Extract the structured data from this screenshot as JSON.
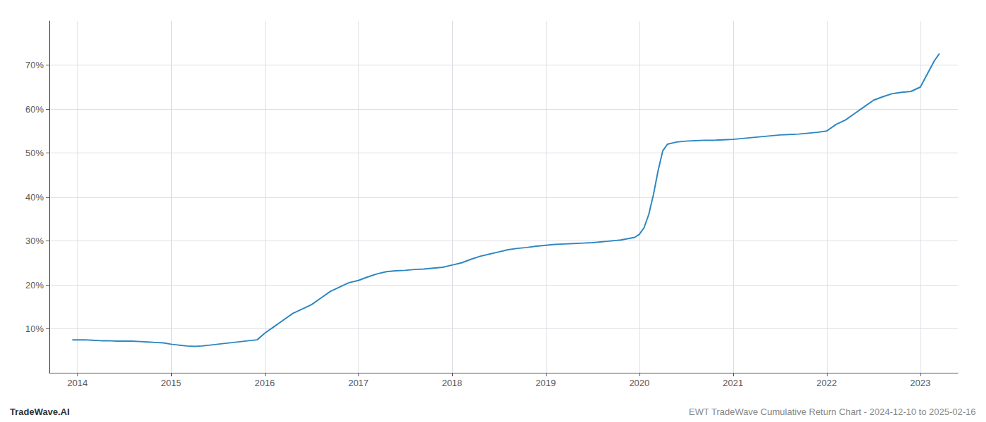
{
  "chart_data": {
    "type": "line",
    "annotations": [
      "TradeWave.AI",
      "EWT TradeWave Cumulative Return Chart - 2024-12-10 to 2025-02-16"
    ],
    "color": "#2e86c1",
    "grid": true,
    "x": [
      2013.95,
      2014.0,
      2014.08,
      2014.16,
      2014.25,
      2014.33,
      2014.42,
      2014.5,
      2014.58,
      2014.67,
      2014.75,
      2014.83,
      2014.92,
      2015.0,
      2015.08,
      2015.17,
      2015.25,
      2015.33,
      2015.42,
      2015.5,
      2015.58,
      2015.67,
      2015.75,
      2015.83,
      2015.92,
      2016.0,
      2016.1,
      2016.2,
      2016.3,
      2016.4,
      2016.5,
      2016.6,
      2016.7,
      2016.8,
      2016.9,
      2017.0,
      2017.1,
      2017.2,
      2017.3,
      2017.4,
      2017.5,
      2017.6,
      2017.7,
      2017.8,
      2017.9,
      2018.0,
      2018.1,
      2018.2,
      2018.3,
      2018.4,
      2018.5,
      2018.6,
      2018.7,
      2018.8,
      2018.9,
      2019.0,
      2019.1,
      2019.2,
      2019.3,
      2019.4,
      2019.5,
      2019.55,
      2019.6,
      2019.65,
      2019.7,
      2019.75,
      2019.8,
      2019.85,
      2019.9,
      2019.95,
      2020.0,
      2020.05,
      2020.1,
      2020.15,
      2020.2,
      2020.25,
      2020.3,
      2020.4,
      2020.5,
      2020.6,
      2020.7,
      2020.8,
      2020.9,
      2021.0,
      2021.1,
      2021.2,
      2021.3,
      2021.4,
      2021.5,
      2021.6,
      2021.7,
      2021.8,
      2021.9,
      2022.0,
      2022.1,
      2022.2,
      2022.3,
      2022.4,
      2022.5,
      2022.6,
      2022.7,
      2022.8,
      2022.9,
      2023.0,
      2023.05,
      2023.1,
      2023.15,
      2023.2
    ],
    "values": [
      7.5,
      7.5,
      7.5,
      7.4,
      7.3,
      7.3,
      7.2,
      7.2,
      7.2,
      7.1,
      7.0,
      6.9,
      6.8,
      6.5,
      6.3,
      6.1,
      6.0,
      6.1,
      6.3,
      6.5,
      6.7,
      6.9,
      7.1,
      7.3,
      7.5,
      9.0,
      10.5,
      12.0,
      13.5,
      14.5,
      15.5,
      17.0,
      18.5,
      19.5,
      20.5,
      21.0,
      21.8,
      22.5,
      23.0,
      23.2,
      23.3,
      23.5,
      23.6,
      23.8,
      24.0,
      24.5,
      25.0,
      25.8,
      26.5,
      27.0,
      27.5,
      28.0,
      28.3,
      28.5,
      28.8,
      29.0,
      29.2,
      29.3,
      29.4,
      29.5,
      29.6,
      29.7,
      29.8,
      29.9,
      30.0,
      30.1,
      30.2,
      30.4,
      30.6,
      30.8,
      31.5,
      33.0,
      36.0,
      40.5,
      46.0,
      50.5,
      52.0,
      52.5,
      52.7,
      52.8,
      52.9,
      52.9,
      53.0,
      53.1,
      53.3,
      53.5,
      53.7,
      53.9,
      54.1,
      54.2,
      54.3,
      54.5,
      54.7,
      55.0,
      56.5,
      57.5,
      59.0,
      60.5,
      62.0,
      62.8,
      63.5,
      63.8,
      64.0,
      65.0,
      67.0,
      69.0,
      71.0,
      72.5
    ],
    "xlim": [
      2013.7,
      2023.4
    ],
    "ylim": [
      0,
      80
    ],
    "xticks": [
      2014,
      2015,
      2016,
      2017,
      2018,
      2019,
      2020,
      2021,
      2022,
      2023
    ],
    "yticks": [
      {
        "value": 10,
        "label": "10%"
      },
      {
        "value": 20,
        "label": "20%"
      },
      {
        "value": 30,
        "label": "30%"
      },
      {
        "value": 40,
        "label": "40%"
      },
      {
        "value": 50,
        "label": "50%"
      },
      {
        "value": 60,
        "label": "60%"
      },
      {
        "value": 70,
        "label": "70%"
      }
    ]
  }
}
